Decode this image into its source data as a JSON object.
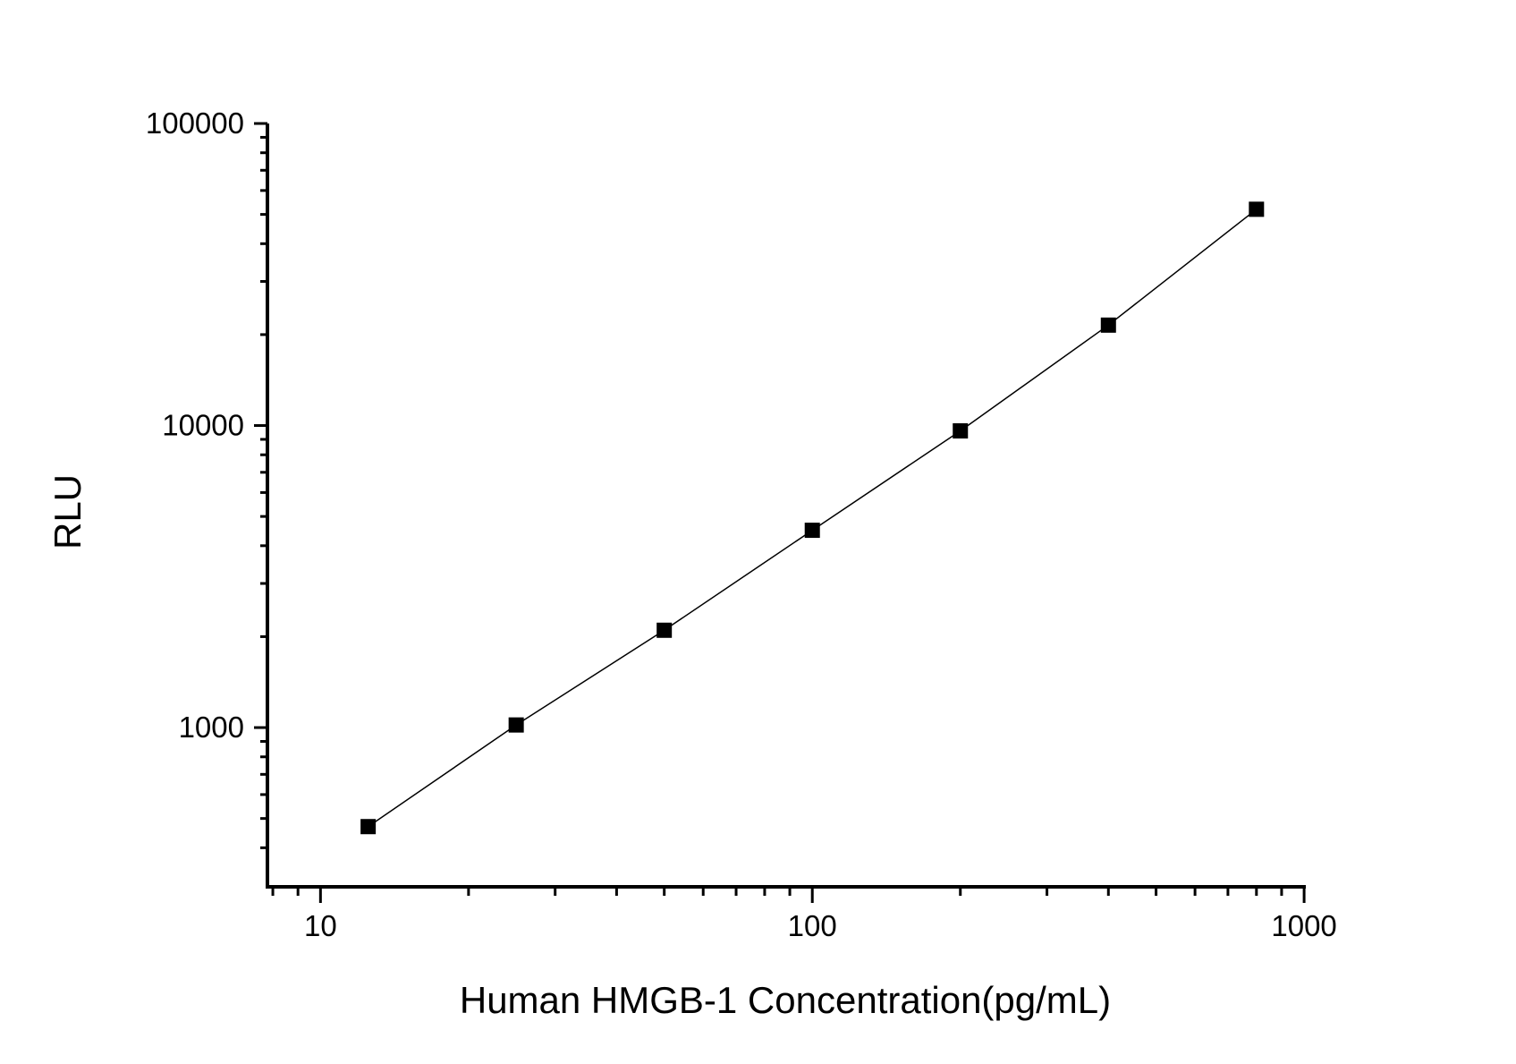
{
  "chart_data": {
    "type": "line",
    "title": "",
    "xlabel": "Human HMGB-1 Concentration(pg/mL)",
    "ylabel": "RLU",
    "x_scale": "log",
    "y_scale": "log",
    "x": [
      12.5,
      25,
      50,
      100,
      200,
      400,
      800
    ],
    "values": [
      470,
      1020,
      2100,
      4500,
      9600,
      21500,
      52000
    ],
    "xlim": [
      7.8,
      1008
    ],
    "ylim": [
      297,
      100000
    ],
    "x_ticks_major": [
      10,
      100,
      1000
    ],
    "x_tick_labels": [
      "10",
      "100",
      "1000"
    ],
    "x_ticks_minor": [
      8,
      9,
      20,
      30,
      40,
      50,
      60,
      70,
      80,
      90,
      200,
      300,
      400,
      500,
      600,
      700,
      800,
      900
    ],
    "y_ticks_major": [
      1000,
      10000,
      100000
    ],
    "y_tick_labels": [
      "1000",
      "10000",
      "100000"
    ],
    "y_ticks_minor": [
      400,
      500,
      600,
      700,
      800,
      900,
      2000,
      3000,
      4000,
      5000,
      6000,
      7000,
      8000,
      9000,
      20000,
      30000,
      40000,
      50000,
      60000,
      70000,
      80000,
      90000
    ],
    "marker": "filled-square",
    "legend": "none",
    "grid": "off",
    "colors": {
      "axis": "#000000",
      "line": "#000000",
      "marker": "#000000",
      "text": "#000000",
      "background": "#ffffff"
    }
  }
}
